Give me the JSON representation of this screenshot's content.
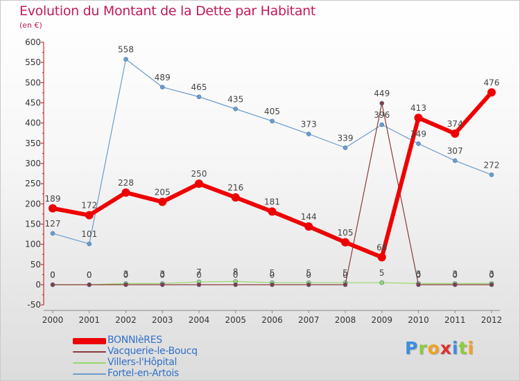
{
  "title": "Evolution du Montant de la Dette par Habitant",
  "subtitle": "(en €)",
  "logo": {
    "letters": [
      "P",
      "r",
      "o",
      "x",
      "i",
      "t",
      "i"
    ],
    "colors": [
      "#3b8ee0",
      "#8ccc3c",
      "#f0a020",
      "#e03030",
      "#3b8ee0",
      "#8ccc3c",
      "#f0a020"
    ]
  },
  "chart_data": {
    "type": "line",
    "title": "Evolution du Montant de la Dette par Habitant",
    "ylabel": "(en €)",
    "xlabel": "",
    "ylim": [
      -50,
      600
    ],
    "yticks": [
      -50,
      0,
      50,
      100,
      150,
      200,
      250,
      300,
      350,
      400,
      450,
      500,
      550,
      600
    ],
    "categories": [
      "2000",
      "2001",
      "2002",
      "2003",
      "2004",
      "2005",
      "2006",
      "2007",
      "2008",
      "2009",
      "2010",
      "2011",
      "2012"
    ],
    "grid": false,
    "legend_position": "bottom-left",
    "series": [
      {
        "name": "Fortel-en-Artois",
        "color": "#6a9ccc",
        "width": 1.2,
        "dot": 3,
        "values": [
          127,
          101,
          558,
          489,
          465,
          435,
          405,
          373,
          339,
          396,
          349,
          307,
          272
        ]
      },
      {
        "name": "Villers-l'Hôpital",
        "color": "#98d868",
        "width": 1.2,
        "dot": 3,
        "values": [
          0,
          0,
          3,
          3,
          7,
          8,
          5,
          5,
          5,
          5,
          3,
          3,
          3
        ]
      },
      {
        "name": "Vacquerie-le-Boucq",
        "color": "#8a3a3a",
        "width": 1.2,
        "dot": 3,
        "values": [
          0,
          0,
          0,
          0,
          0,
          0,
          0,
          0,
          0,
          449,
          0,
          0,
          0
        ]
      },
      {
        "name": "BONNIèRES",
        "color": "#ee0000",
        "width": 6,
        "dot": 6,
        "values": [
          189,
          172,
          228,
          205,
          250,
          216,
          181,
          144,
          105,
          68,
          413,
          374,
          476
        ]
      }
    ]
  }
}
